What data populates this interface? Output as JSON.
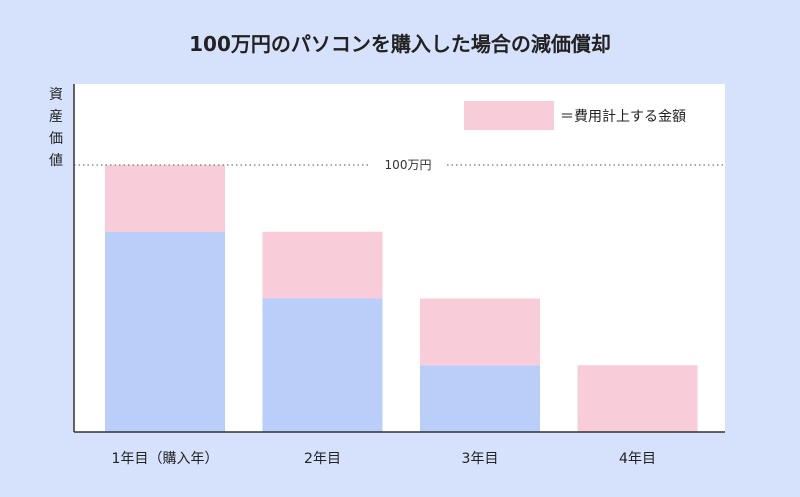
{
  "chart_data": {
    "type": "bar",
    "stacked": true,
    "title": "100万円のパソコンを購入した場合の減価償却",
    "ylabel": "資産価値",
    "categories": [
      "1年目（購入年）",
      "2年目",
      "3年目",
      "4年目"
    ],
    "series": [
      {
        "values": [
          75,
          50,
          25,
          0
        ],
        "color": "#b9cffa"
      },
      {
        "name": "＝費用計上する金額",
        "values": [
          25,
          25,
          25,
          25
        ],
        "color": "#f9ccda"
      }
    ],
    "ylim": [
      0,
      100
    ],
    "reference_line": {
      "value": 100,
      "label": "100万円"
    },
    "legend": "top-right",
    "grid": false
  }
}
